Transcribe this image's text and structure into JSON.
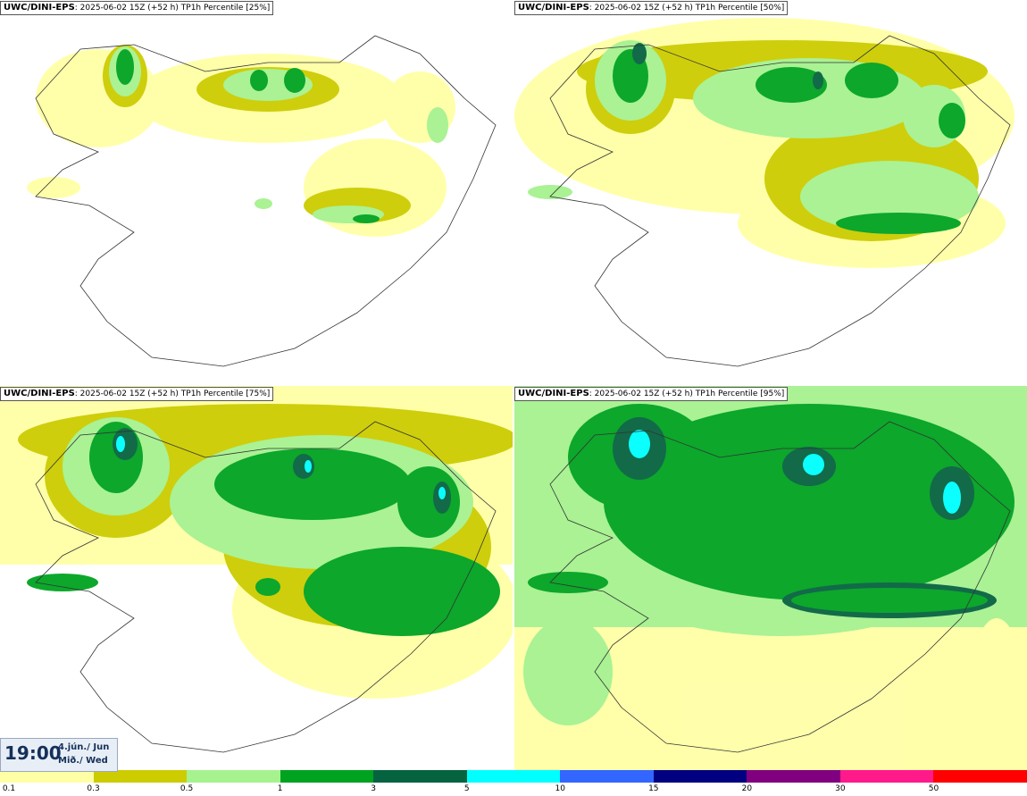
{
  "panels": [
    {
      "model": "UWC/DINI-EPS",
      "run": ": 2025-06-02 15Z (+52 h)",
      "product": "TP1h Percentile [25%]"
    },
    {
      "model": "UWC/DINI-EPS",
      "run": ": 2025-06-02 15Z (+52 h)",
      "product": "TP1h Percentile [50%]"
    },
    {
      "model": "UWC/DINI-EPS",
      "run": ": 2025-06-02 15Z (+52 h)",
      "product": "TP1h Percentile [75%]"
    },
    {
      "model": "UWC/DINI-EPS",
      "run": ": 2025-06-02 15Z (+52 h)",
      "product": "TP1h Percentile [95%]"
    }
  ],
  "time": {
    "clock": "19:00",
    "date_line1": "4.jún./ Jun",
    "date_line2": "Mið./ Wed"
  },
  "legend": {
    "colors": [
      "#ffffa6",
      "#cccc00",
      "#a6f28f",
      "#00a320",
      "#066340",
      "#00ffff",
      "#3366ff",
      "#000080",
      "#800080",
      "#ff1a8c",
      "#ff0000"
    ],
    "ticks": [
      "0.1",
      "0.3",
      "0.5",
      "1",
      "3",
      "5",
      "10",
      "15",
      "20",
      "30",
      "50"
    ]
  },
  "colors": {
    "land_outline": "#333333",
    "background": "#ffffff"
  }
}
